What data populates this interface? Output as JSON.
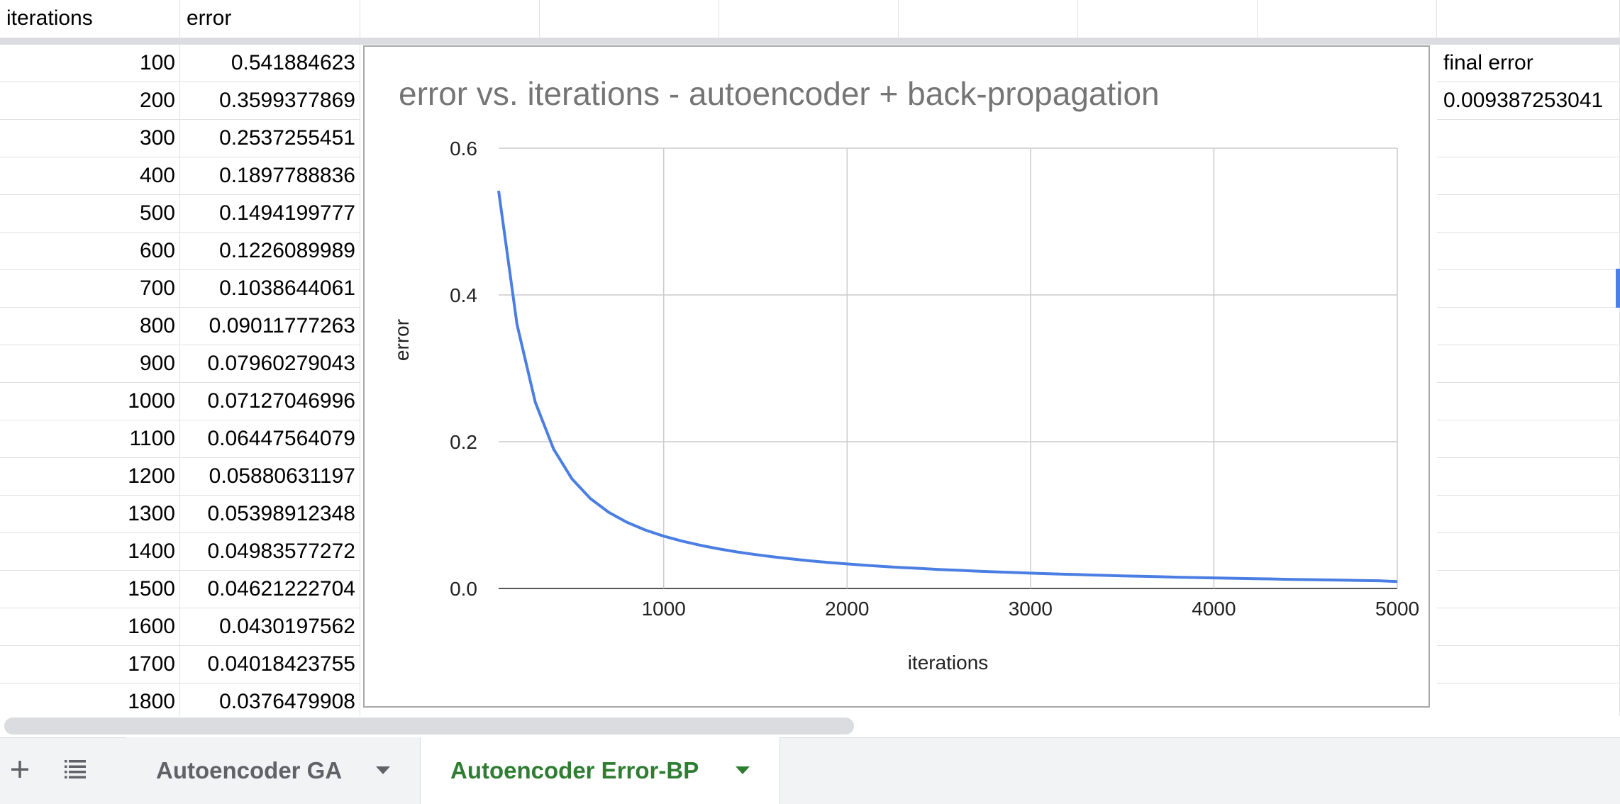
{
  "sheet": {
    "header": {
      "a": "iterations",
      "b": "error"
    },
    "rows": [
      {
        "iterations": "100",
        "error": "0.541884623"
      },
      {
        "iterations": "200",
        "error": "0.3599377869"
      },
      {
        "iterations": "300",
        "error": "0.2537255451"
      },
      {
        "iterations": "400",
        "error": "0.1897788836"
      },
      {
        "iterations": "500",
        "error": "0.1494199777"
      },
      {
        "iterations": "600",
        "error": "0.1226089989"
      },
      {
        "iterations": "700",
        "error": "0.1038644061"
      },
      {
        "iterations": "800",
        "error": "0.09011777263"
      },
      {
        "iterations": "900",
        "error": "0.07960279043"
      },
      {
        "iterations": "1000",
        "error": "0.07127046996"
      },
      {
        "iterations": "1100",
        "error": "0.06447564079"
      },
      {
        "iterations": "1200",
        "error": "0.05880631197"
      },
      {
        "iterations": "1300",
        "error": "0.05398912348"
      },
      {
        "iterations": "1400",
        "error": "0.04983577272"
      },
      {
        "iterations": "1500",
        "error": "0.04621222704"
      },
      {
        "iterations": "1600",
        "error": "0.0430197562"
      },
      {
        "iterations": "1700",
        "error": "0.04018423755"
      },
      {
        "iterations": "1800",
        "error": "0.0376479908"
      }
    ],
    "final_error_label": "final error",
    "final_error_value": "0.009387253041"
  },
  "tabs": [
    {
      "label": "Autoencoder GA",
      "active": false
    },
    {
      "label": "Autoencoder Error-BP",
      "active": true
    }
  ],
  "icons": {
    "add_sheet": "plus-icon",
    "all_sheets": "list-icon"
  },
  "colors": {
    "series": "#4a7ee3",
    "active_tab": "#2e7d32",
    "inactive_tab": "#5f6368"
  },
  "chart_data": {
    "type": "line",
    "title": "error vs. iterations - autoencoder + back-propagation",
    "xlabel": "iterations",
    "ylabel": "error",
    "xlim": [
      100,
      5000
    ],
    "ylim": [
      0,
      0.6
    ],
    "x_ticks": [
      "1000",
      "2000",
      "3000",
      "4000",
      "5000"
    ],
    "y_ticks": [
      "0.0",
      "0.2",
      "0.4",
      "0.6"
    ],
    "grid": true,
    "series": [
      {
        "x": [
          100,
          200,
          300,
          400,
          500,
          600,
          700,
          800,
          900,
          1000,
          1100,
          1200,
          1300,
          1400,
          1500,
          1600,
          1700,
          1800,
          1900,
          2000,
          2100,
          2200,
          2300,
          2400,
          2500,
          2600,
          2700,
          2800,
          2900,
          3000,
          3100,
          3200,
          3300,
          3400,
          3500,
          3600,
          3700,
          3800,
          3900,
          4000,
          4100,
          4200,
          4300,
          4400,
          4500,
          4600,
          4700,
          4800,
          4900,
          5000
        ],
        "values": [
          0.5419,
          0.3599,
          0.2537,
          0.1898,
          0.1494,
          0.1226,
          0.1039,
          0.0901,
          0.0796,
          0.0713,
          0.0645,
          0.0588,
          0.054,
          0.0498,
          0.0462,
          0.043,
          0.0402,
          0.0376,
          0.0354,
          0.0334,
          0.0316,
          0.03,
          0.0285,
          0.0272,
          0.0259,
          0.0248,
          0.0237,
          0.0227,
          0.0218,
          0.0209,
          0.0201,
          0.0193,
          0.0186,
          0.0179,
          0.0172,
          0.0166,
          0.016,
          0.0154,
          0.0149,
          0.0144,
          0.0139,
          0.0134,
          0.013,
          0.0125,
          0.0121,
          0.0117,
          0.0113,
          0.0109,
          0.0105,
          0.0094
        ]
      }
    ]
  }
}
